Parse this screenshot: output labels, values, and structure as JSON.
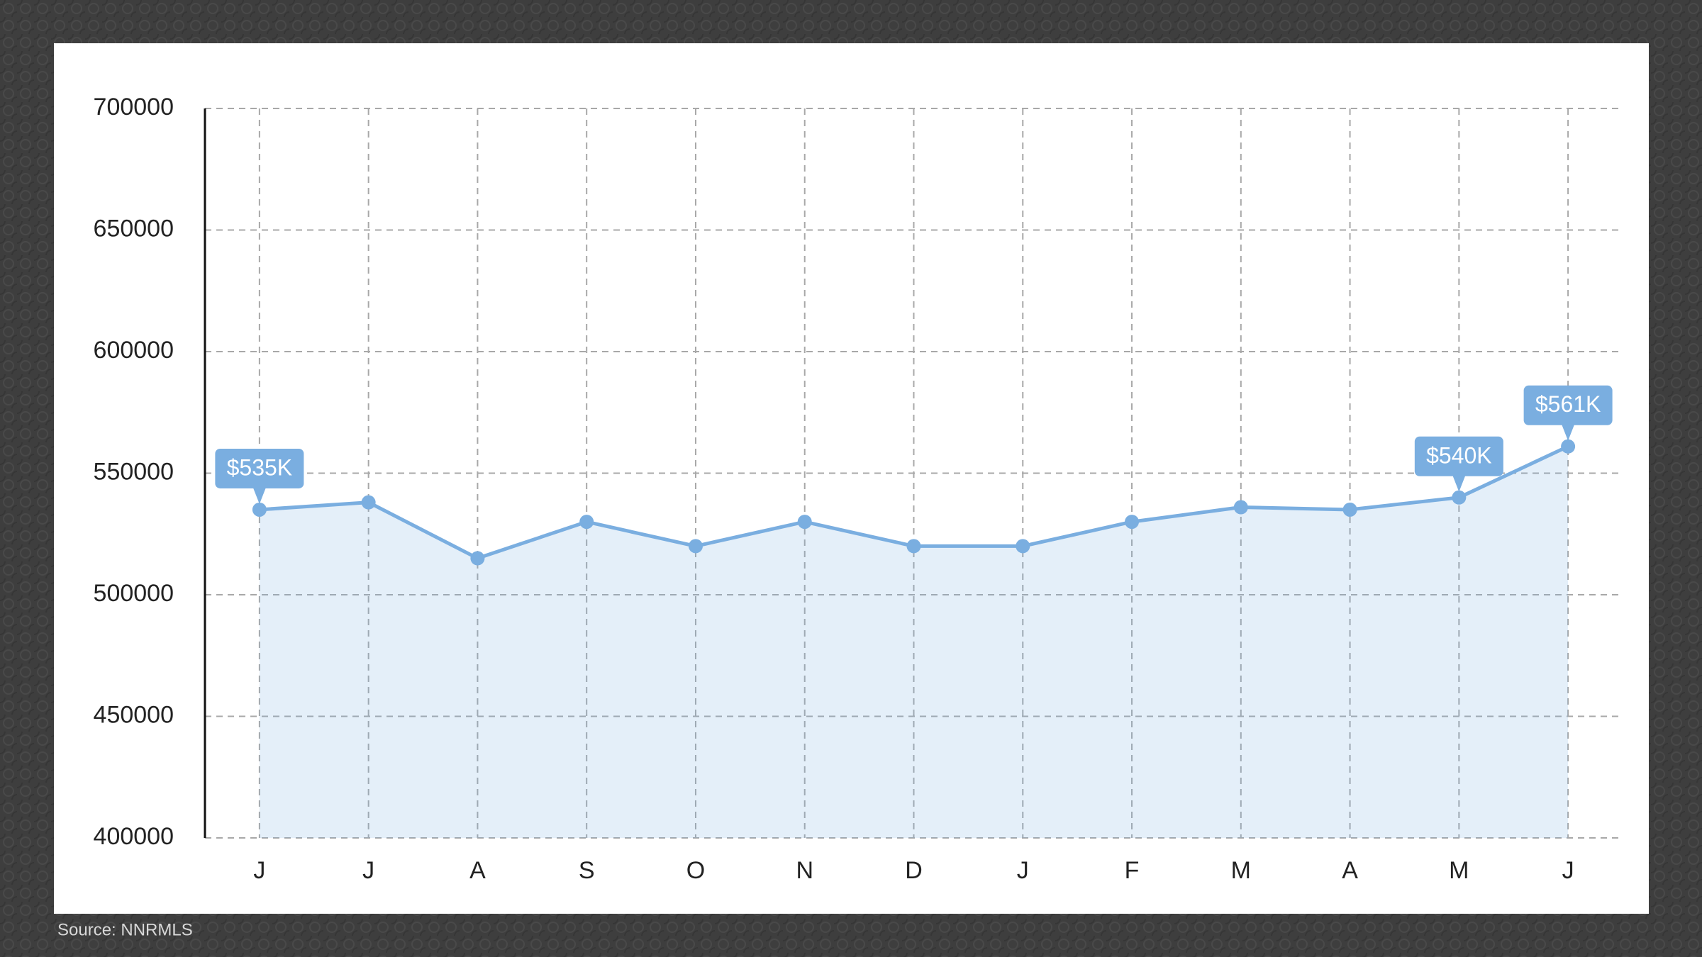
{
  "chart_data": {
    "type": "line",
    "categories": [
      "J",
      "J",
      "A",
      "S",
      "O",
      "N",
      "D",
      "J",
      "F",
      "M",
      "A",
      "M",
      "J"
    ],
    "values": [
      535000,
      538000,
      515000,
      530000,
      520000,
      530000,
      520000,
      520000,
      530000,
      536000,
      535000,
      540000,
      561000
    ],
    "value_labels": [
      "$535K",
      null,
      null,
      null,
      null,
      null,
      null,
      null,
      null,
      null,
      null,
      "$540K",
      "$561K"
    ],
    "color": "#7aaee0",
    "ylim": [
      400000,
      700000
    ],
    "yticks": [
      400000,
      450000,
      500000,
      550000,
      600000,
      650000,
      700000
    ],
    "grid": true,
    "source": "Source: NNRMLS"
  }
}
